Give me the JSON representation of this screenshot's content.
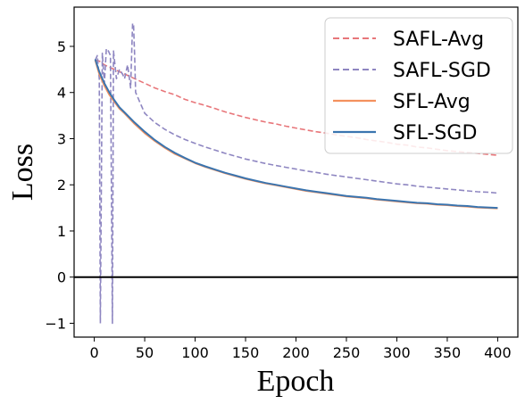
{
  "chart_data": {
    "type": "line",
    "xlabel": "Epoch",
    "ylabel": "Loss",
    "xlim": [
      -20,
      420
    ],
    "ylim": [
      -1.3,
      5.85
    ],
    "xticks": [
      0,
      50,
      100,
      150,
      200,
      250,
      300,
      350,
      400
    ],
    "yticks": [
      -1,
      0,
      1,
      2,
      3,
      4,
      5
    ],
    "ytick_labels": [
      "−1",
      "0",
      "1",
      "2",
      "3",
      "4",
      "5"
    ],
    "legend_position": "top-right",
    "grid": false,
    "horizontal_reference_line": 0,
    "series": [
      {
        "name": "SAFL-Avg",
        "color": "#e8767a",
        "style": "dashed",
        "x": [
          1,
          5,
          10,
          15,
          20,
          25,
          30,
          40,
          50,
          60,
          70,
          80,
          90,
          100,
          110,
          120,
          130,
          140,
          150,
          160,
          170,
          180,
          190,
          200,
          210,
          220,
          230,
          240,
          250,
          260,
          270,
          280,
          290,
          300,
          310,
          320,
          330,
          340,
          350,
          360,
          370,
          380,
          390,
          400
        ],
        "y": [
          4.7,
          4.68,
          4.6,
          4.55,
          4.5,
          4.45,
          4.4,
          4.3,
          4.2,
          4.1,
          4.02,
          3.95,
          3.85,
          3.78,
          3.72,
          3.65,
          3.58,
          3.52,
          3.46,
          3.41,
          3.36,
          3.32,
          3.27,
          3.23,
          3.19,
          3.15,
          3.12,
          3.08,
          3.05,
          3.02,
          2.98,
          2.95,
          2.92,
          2.88,
          2.86,
          2.82,
          2.8,
          2.77,
          2.74,
          2.72,
          2.7,
          2.68,
          2.66,
          2.64
        ]
      },
      {
        "name": "SAFL-SGD",
        "color": "#8e86c1",
        "style": "dashed",
        "x": [
          1,
          3,
          5,
          6,
          8,
          10,
          12,
          14,
          16,
          18,
          19,
          20,
          22,
          25,
          28,
          30,
          33,
          36,
          38,
          39,
          40,
          41,
          43,
          45,
          50,
          60,
          70,
          80,
          90,
          100,
          110,
          120,
          130,
          140,
          150,
          160,
          170,
          180,
          190,
          200,
          210,
          220,
          230,
          240,
          250,
          260,
          270,
          280,
          290,
          300,
          310,
          320,
          330,
          340,
          350,
          360,
          370,
          380,
          390,
          400
        ],
        "y": [
          4.7,
          4.8,
          4.3,
          -1.0,
          4.85,
          4.2,
          4.95,
          4.9,
          4.8,
          -1.0,
          4.9,
          4.7,
          4.3,
          4.5,
          4.4,
          4.3,
          4.6,
          4.1,
          5.5,
          5.45,
          4.8,
          4.0,
          3.9,
          3.8,
          3.55,
          3.35,
          3.2,
          3.08,
          2.98,
          2.9,
          2.82,
          2.75,
          2.68,
          2.62,
          2.56,
          2.51,
          2.46,
          2.42,
          2.38,
          2.34,
          2.3,
          2.27,
          2.23,
          2.2,
          2.17,
          2.14,
          2.11,
          2.08,
          2.05,
          2.02,
          2.0,
          1.97,
          1.95,
          1.93,
          1.91,
          1.89,
          1.87,
          1.85,
          1.84,
          1.82
        ]
      },
      {
        "name": "SFL-Avg",
        "color": "#f4915e",
        "style": "solid",
        "x": [
          1,
          5,
          10,
          15,
          20,
          25,
          30,
          40,
          50,
          60,
          70,
          80,
          90,
          100,
          110,
          120,
          130,
          140,
          150,
          160,
          170,
          180,
          190,
          200,
          210,
          220,
          230,
          240,
          250,
          260,
          270,
          280,
          290,
          300,
          310,
          320,
          330,
          340,
          350,
          360,
          370,
          380,
          390,
          400
        ],
        "y": [
          4.7,
          4.4,
          4.15,
          3.95,
          3.8,
          3.65,
          3.55,
          3.32,
          3.12,
          2.95,
          2.8,
          2.67,
          2.57,
          2.47,
          2.39,
          2.32,
          2.25,
          2.19,
          2.13,
          2.08,
          2.03,
          1.99,
          1.95,
          1.91,
          1.87,
          1.84,
          1.81,
          1.78,
          1.75,
          1.73,
          1.71,
          1.68,
          1.66,
          1.64,
          1.62,
          1.6,
          1.59,
          1.57,
          1.56,
          1.54,
          1.53,
          1.51,
          1.5,
          1.49
        ]
      },
      {
        "name": "SFL-SGD",
        "color": "#3b75af",
        "style": "solid",
        "x": [
          1,
          5,
          10,
          15,
          20,
          25,
          30,
          40,
          50,
          60,
          70,
          80,
          90,
          100,
          110,
          120,
          130,
          140,
          150,
          160,
          170,
          180,
          190,
          200,
          210,
          220,
          230,
          240,
          250,
          260,
          270,
          280,
          290,
          300,
          310,
          320,
          330,
          340,
          350,
          360,
          370,
          380,
          390,
          400
        ],
        "y": [
          4.72,
          4.45,
          4.2,
          4.0,
          3.83,
          3.68,
          3.57,
          3.35,
          3.15,
          2.97,
          2.82,
          2.69,
          2.58,
          2.48,
          2.4,
          2.33,
          2.26,
          2.2,
          2.14,
          2.09,
          2.04,
          2.0,
          1.96,
          1.92,
          1.88,
          1.85,
          1.82,
          1.79,
          1.76,
          1.74,
          1.72,
          1.69,
          1.67,
          1.65,
          1.63,
          1.61,
          1.6,
          1.58,
          1.57,
          1.55,
          1.54,
          1.52,
          1.51,
          1.5
        ]
      }
    ]
  }
}
